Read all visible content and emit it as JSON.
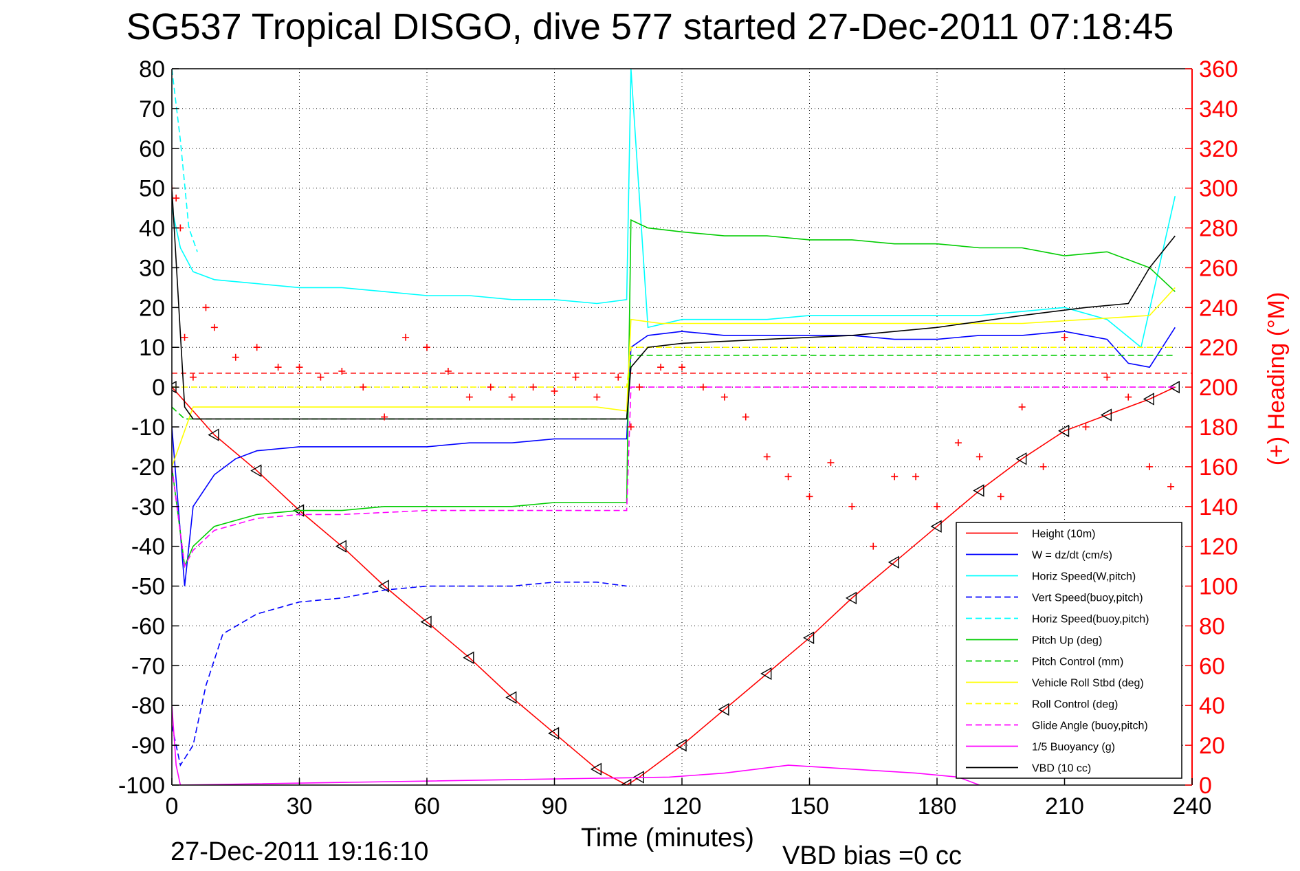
{
  "title": "SG537 Tropical DISGO, dive 577 started 27-Dec-2011 07:18:45",
  "footer": {
    "date": "27-Dec-2011 19:16:10",
    "vbd_bias": "VBD bias =0 cc"
  },
  "chart_data": {
    "type": "line",
    "xlabel": "Time (minutes)",
    "ylabel": "",
    "y2label": "(+) Heading (°M)",
    "xlim": [
      0,
      240
    ],
    "ylim": [
      -100,
      80
    ],
    "y2lim": [
      0,
      360
    ],
    "x_ticks": [
      0,
      30,
      60,
      90,
      120,
      150,
      180,
      210,
      240
    ],
    "y_ticks": [
      80,
      70,
      60,
      50,
      40,
      30,
      20,
      10,
      0,
      -10,
      -20,
      -30,
      -40,
      -50,
      -60,
      -70,
      -80,
      -90,
      -100
    ],
    "y2_ticks": [
      360,
      340,
      320,
      300,
      280,
      260,
      240,
      220,
      200,
      180,
      160,
      140,
      120,
      100,
      80,
      60,
      40,
      20,
      0
    ],
    "grid": true,
    "legend_position": "bottom-right",
    "colors": {
      "heading": "#ff0000",
      "axes": "#000000"
    },
    "series": [
      {
        "name": "Height (10m)",
        "color": "#ff0000",
        "dash": "solid",
        "marker": "triangle",
        "x": [
          0,
          10,
          20,
          30,
          40,
          50,
          60,
          70,
          80,
          90,
          100,
          107,
          110,
          120,
          130,
          140,
          150,
          160,
          170,
          180,
          190,
          200,
          210,
          220,
          230,
          236
        ],
        "y": [
          0,
          -12,
          -21,
          -31,
          -40,
          -50,
          -59,
          -68,
          -78,
          -87,
          -96,
          -100,
          -98,
          -90,
          -81,
          -72,
          -63,
          -53,
          -44,
          -35,
          -26,
          -18,
          -11,
          -7,
          -3,
          0
        ]
      },
      {
        "name": "W = dz/dt (cm/s)",
        "color": "#0000ff",
        "dash": "solid",
        "x": [
          0,
          3,
          5,
          10,
          15,
          20,
          30,
          40,
          50,
          60,
          70,
          80,
          90,
          100,
          107,
          108,
          112,
          120,
          130,
          140,
          150,
          160,
          170,
          180,
          190,
          200,
          210,
          220,
          225,
          230,
          236
        ],
        "y": [
          -10,
          -50,
          -30,
          -22,
          -18,
          -16,
          -15,
          -15,
          -15,
          -15,
          -14,
          -14,
          -13,
          -13,
          -13,
          10,
          13,
          14,
          13,
          13,
          13,
          13,
          12,
          12,
          13,
          13,
          14,
          12,
          6,
          5,
          15
        ]
      },
      {
        "name": "Horiz Speed(W,pitch)",
        "color": "#00ffff",
        "dash": "solid",
        "x": [
          0,
          2,
          5,
          10,
          20,
          30,
          40,
          50,
          60,
          70,
          80,
          90,
          100,
          107,
          108,
          112,
          120,
          130,
          140,
          150,
          160,
          170,
          180,
          190,
          200,
          210,
          220,
          228,
          236
        ],
        "y": [
          45,
          35,
          29,
          27,
          26,
          25,
          25,
          24,
          23,
          23,
          22,
          22,
          21,
          22,
          80,
          15,
          17,
          17,
          17,
          18,
          18,
          18,
          18,
          18,
          19,
          20,
          17,
          10,
          48
        ]
      },
      {
        "name": "Vert Speed(buoy,pitch)",
        "color": "#0000ff",
        "dash": "dashed",
        "x": [
          0,
          2,
          5,
          8,
          12,
          20,
          30,
          40,
          50,
          60,
          70,
          80,
          90,
          100,
          107
        ],
        "y": [
          -85,
          -95,
          -90,
          -75,
          -62,
          -57,
          -54,
          -53,
          -51,
          -50,
          -50,
          -50,
          -49,
          -49,
          -50
        ]
      },
      {
        "name": "Horiz Speed(buoy,pitch)",
        "color": "#00ffff",
        "dash": "dashed",
        "x": [
          0,
          2,
          4,
          6
        ],
        "y": [
          80,
          62,
          40,
          34
        ]
      },
      {
        "name": "Pitch Up (deg)",
        "color": "#00cc00",
        "dash": "solid",
        "x": [
          0,
          3,
          5,
          10,
          20,
          30,
          40,
          50,
          60,
          70,
          80,
          90,
          100,
          107,
          108,
          112,
          120,
          130,
          140,
          150,
          160,
          170,
          180,
          190,
          200,
          210,
          220,
          230,
          236
        ],
        "y": [
          -20,
          -45,
          -40,
          -35,
          -32,
          -31,
          -31,
          -30,
          -30,
          -30,
          -30,
          -29,
          -29,
          -29,
          42,
          40,
          39,
          38,
          38,
          37,
          37,
          36,
          36,
          35,
          35,
          33,
          34,
          30,
          24
        ]
      },
      {
        "name": "Pitch Control (mm)",
        "color": "#00cc00",
        "dash": "dashed",
        "x": [
          0,
          3,
          107,
          108,
          236
        ],
        "y": [
          -5,
          -8,
          -8,
          8,
          8
        ]
      },
      {
        "name": "Vehicle Roll Stbd (deg)",
        "color": "#ffff00",
        "dash": "solid",
        "x": [
          0,
          5,
          10,
          20,
          40,
          60,
          80,
          100,
          107,
          108,
          115,
          140,
          170,
          200,
          230,
          236
        ],
        "y": [
          -20,
          -5,
          -5,
          -5,
          -5,
          -5,
          -5,
          -5,
          -6,
          17,
          16,
          16,
          16,
          16,
          18,
          25
        ]
      },
      {
        "name": "Roll Control (deg)",
        "color": "#ffff00",
        "dash": "dashed",
        "x": [
          0,
          5,
          107,
          108,
          236
        ],
        "y": [
          0,
          0,
          0,
          10,
          10
        ]
      },
      {
        "name": "Glide Angle (buoy,pitch)",
        "color": "#ff00ff",
        "dash": "dashed",
        "x": [
          0,
          3,
          5,
          10,
          20,
          30,
          40,
          60,
          80,
          100,
          107,
          108,
          236
        ],
        "y": [
          -20,
          -45,
          -41,
          -36,
          -33,
          -32,
          -32,
          -31,
          -31,
          -31,
          -31,
          0,
          0
        ]
      },
      {
        "name": "1/5 Buoyancy (g)",
        "color": "#ff00ff",
        "dash": "solid",
        "x": [
          0,
          1,
          2,
          117,
          130,
          145,
          160,
          175,
          185,
          190
        ],
        "y": [
          -80,
          -95,
          -100,
          -98,
          -97,
          -95,
          -96,
          -97,
          -98,
          -100
        ]
      },
      {
        "name": "VBD (10 cc)",
        "color": "#000000",
        "dash": "solid",
        "x": [
          0,
          3,
          5,
          8,
          107,
          108,
          112,
          120,
          140,
          160,
          180,
          200,
          215,
          225,
          230,
          236
        ],
        "y": [
          50,
          -5,
          -8,
          -8,
          -8,
          5,
          10,
          11,
          12,
          13,
          15,
          18,
          20,
          21,
          30,
          38
        ]
      }
    ],
    "heading_series": {
      "name": "Heading",
      "axis": "right",
      "marker": "+",
      "color": "#ff0000",
      "mean": 207,
      "x": [
        0,
        1,
        2,
        3,
        5,
        8,
        10,
        15,
        20,
        25,
        30,
        35,
        40,
        45,
        50,
        55,
        60,
        65,
        70,
        75,
        80,
        85,
        90,
        95,
        100,
        105,
        108,
        110,
        115,
        120,
        125,
        130,
        135,
        140,
        145,
        150,
        155,
        160,
        165,
        170,
        175,
        180,
        185,
        190,
        195,
        200,
        205,
        210,
        215,
        220,
        225,
        230,
        235
      ],
      "y": [
        300,
        295,
        280,
        225,
        205,
        240,
        230,
        215,
        220,
        210,
        210,
        205,
        208,
        200,
        185,
        225,
        220,
        208,
        195,
        200,
        195,
        200,
        198,
        205,
        195,
        205,
        180,
        200,
        210,
        210,
        200,
        195,
        185,
        165,
        155,
        145,
        162,
        140,
        120,
        155,
        155,
        140,
        172,
        165,
        145,
        190,
        160,
        225,
        180,
        205,
        195,
        160,
        150
      ]
    }
  }
}
